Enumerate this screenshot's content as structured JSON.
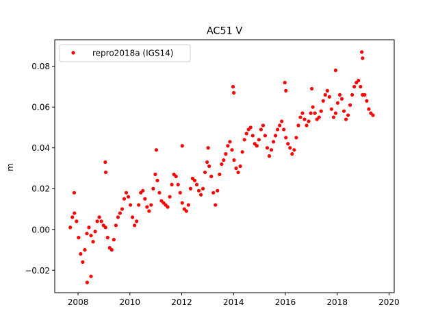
{
  "chart_data": {
    "type": "scatter",
    "title": "AC51 V",
    "xlabel": "",
    "ylabel": "m",
    "xlim": [
      2007.1,
      2020.2
    ],
    "ylim": [
      -0.031,
      0.093
    ],
    "x_ticks": [
      2008,
      2010,
      2012,
      2014,
      2016,
      2018,
      2020
    ],
    "x_tick_labels": [
      "2008",
      "2010",
      "2012",
      "2014",
      "2016",
      "2018",
      "2020"
    ],
    "y_ticks": [
      -0.02,
      0.0,
      0.02,
      0.04,
      0.06,
      0.08
    ],
    "y_tick_labels": [
      "−0.02",
      "0.00",
      "0.02",
      "0.04",
      "0.06",
      "0.08"
    ],
    "grid": false,
    "legend_position": "top-left",
    "series": [
      {
        "name": "repro2018a (IGS14)",
        "color": "#ff0000",
        "marker": "circle",
        "x": [
          2007.7,
          2007.78,
          2007.86,
          2007.94,
          2008.02,
          2008.1,
          2008.18,
          2008.26,
          2008.34,
          2008.42,
          2008.5,
          2008.58,
          2008.66,
          2008.74,
          2008.82,
          2008.9,
          2008.98,
          2009.06,
          2009.14,
          2009.22,
          2009.3,
          2009.38,
          2009.46,
          2009.54,
          2009.62,
          2009.7,
          2009.78,
          2009.86,
          2009.94,
          2010.02,
          2010.1,
          2010.18,
          2010.26,
          2010.34,
          2010.42,
          2010.5,
          2010.58,
          2010.66,
          2010.74,
          2010.82,
          2010.9,
          2010.98,
          2011.06,
          2011.14,
          2011.22,
          2011.3,
          2011.38,
          2011.46,
          2011.54,
          2011.62,
          2011.7,
          2011.78,
          2011.86,
          2011.94,
          2012.02,
          2012.1,
          2012.18,
          2012.26,
          2012.34,
          2012.42,
          2012.5,
          2012.58,
          2012.66,
          2012.74,
          2012.82,
          2012.9,
          2012.98,
          2013.06,
          2013.14,
          2013.22,
          2013.3,
          2013.38,
          2013.46,
          2013.54,
          2013.62,
          2013.7,
          2013.78,
          2013.86,
          2013.94,
          2014.02,
          2014.1,
          2014.18,
          2014.26,
          2014.34,
          2014.42,
          2014.5,
          2014.58,
          2014.66,
          2014.74,
          2014.82,
          2014.9,
          2014.98,
          2015.06,
          2015.14,
          2015.22,
          2015.3,
          2015.38,
          2015.46,
          2015.54,
          2015.62,
          2015.7,
          2015.78,
          2015.86,
          2015.94,
          2016.02,
          2016.1,
          2016.18,
          2016.26,
          2016.34,
          2016.42,
          2016.5,
          2016.58,
          2016.66,
          2016.74,
          2016.82,
          2016.9,
          2016.98,
          2017.06,
          2017.14,
          2017.22,
          2017.3,
          2017.38,
          2017.46,
          2017.54,
          2017.62,
          2017.7,
          2017.78,
          2017.86,
          2017.94,
          2018.02,
          2018.1,
          2018.18,
          2018.26,
          2018.34,
          2018.42,
          2018.5,
          2018.58,
          2018.66,
          2018.74,
          2018.82,
          2018.9,
          2018.98,
          2019.06,
          2019.14,
          2019.22,
          2019.3,
          2019.38,
          2009.05,
          2009.07,
          2011.02,
          2012.02,
          2013.02,
          2013.98,
          2014.01,
          2015.98,
          2016.02,
          2017.02,
          2017.94,
          2018.95,
          2018.98,
          2007.85,
          2008.35,
          2008.5
        ],
        "y": [
          0.001,
          0.006,
          0.008,
          0.004,
          -0.004,
          -0.012,
          -0.016,
          -0.01,
          -0.002,
          0.001,
          -0.003,
          -0.006,
          -0.001,
          0.004,
          0.006,
          0.004,
          0.002,
          0.001,
          -0.004,
          -0.009,
          -0.01,
          -0.005,
          0.002,
          0.006,
          0.008,
          0.01,
          0.015,
          0.018,
          0.016,
          0.012,
          0.006,
          0.002,
          0.004,
          0.012,
          0.018,
          0.019,
          0.015,
          0.011,
          0.009,
          0.012,
          0.02,
          0.027,
          0.024,
          0.018,
          0.014,
          0.013,
          0.012,
          0.011,
          0.016,
          0.022,
          0.027,
          0.026,
          0.022,
          0.018,
          0.013,
          0.01,
          0.009,
          0.012,
          0.02,
          0.025,
          0.024,
          0.022,
          0.019,
          0.017,
          0.02,
          0.028,
          0.033,
          0.031,
          0.026,
          0.018,
          0.012,
          0.019,
          0.027,
          0.032,
          0.034,
          0.037,
          0.041,
          0.043,
          0.039,
          0.034,
          0.03,
          0.028,
          0.031,
          0.038,
          0.044,
          0.047,
          0.049,
          0.05,
          0.046,
          0.042,
          0.041,
          0.044,
          0.049,
          0.051,
          0.046,
          0.04,
          0.036,
          0.039,
          0.043,
          0.046,
          0.049,
          0.051,
          0.053,
          0.049,
          0.045,
          0.042,
          0.04,
          0.037,
          0.039,
          0.045,
          0.051,
          0.055,
          0.057,
          0.054,
          0.051,
          0.053,
          0.057,
          0.06,
          0.057,
          0.054,
          0.055,
          0.058,
          0.063,
          0.066,
          0.068,
          0.065,
          0.059,
          0.055,
          0.057,
          0.062,
          0.066,
          0.064,
          0.058,
          0.054,
          0.056,
          0.061,
          0.066,
          0.07,
          0.072,
          0.073,
          0.07,
          0.066,
          0.066,
          0.063,
          0.059,
          0.057,
          0.056,
          0.033,
          0.028,
          0.039,
          0.041,
          0.04,
          0.07,
          0.067,
          0.072,
          0.068,
          0.069,
          0.078,
          0.087,
          0.084,
          0.018,
          -0.026,
          -0.023
        ]
      }
    ]
  }
}
